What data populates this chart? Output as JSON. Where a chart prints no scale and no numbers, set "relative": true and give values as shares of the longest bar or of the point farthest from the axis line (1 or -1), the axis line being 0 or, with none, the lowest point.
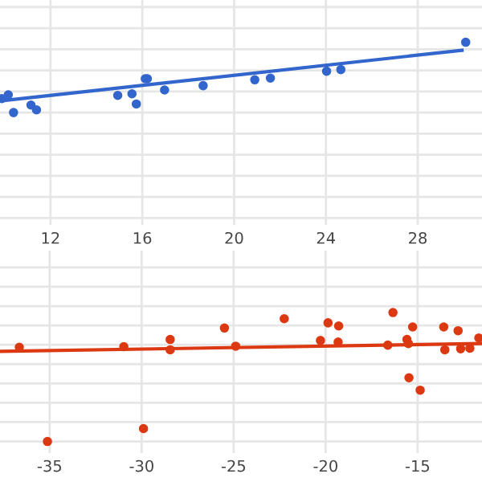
{
  "chart_data": [
    {
      "type": "scatter",
      "relative": true,
      "xlim": [
        9.8,
        30.8
      ],
      "xticks": [
        12,
        16,
        20,
        24,
        28
      ],
      "grid": true,
      "tick_labels": "x",
      "series": [
        {
          "marker": "circle",
          "color": "#3366cc",
          "x": [
            9.88,
            10.16,
            10.39,
            11.15,
            11.39,
            14.93,
            15.55,
            15.74,
            16.13,
            16.22,
            16.97,
            18.65,
            20.9,
            21.58,
            24.03,
            24.65,
            30.09
          ],
          "values": [
            0.198,
            0.252,
            0,
            0.107,
            0.038,
            0.244,
            0.267,
            0.122,
            0.481,
            0.481,
            0.321,
            0.382,
            0.466,
            0.489,
            0.588,
            0.611,
            1
          ]
        },
        {
          "type": "line",
          "color": "#3366cc",
          "x": [
            9.88,
            29.93
          ],
          "values": [
            0.168,
            0.885
          ]
        }
      ]
    },
    {
      "type": "scatter",
      "relative": true,
      "xlim": [
        -37.7,
        -11.5
      ],
      "xticks": [
        -35,
        -30,
        -25,
        -20,
        -15
      ],
      "grid": true,
      "tick_labels": "x",
      "series": [
        {
          "marker": "circle",
          "color": "#dc3912",
          "x": [
            -36.65,
            -35.12,
            -30.97,
            -29.9,
            -28.45,
            -28.45,
            -25.5,
            -24.89,
            -22.25,
            -20.28,
            -19.87,
            -19.29,
            -19.32,
            -16.62,
            -16.34,
            -15.58,
            -15.5,
            -15.47,
            -15.27,
            -14.86,
            -13.58,
            -13.52,
            -12.8,
            -12.66,
            -12.16,
            -11.67
          ],
          "values": [
            0.731,
            0,
            0.735,
            0.1,
            0.791,
            0.711,
            0.88,
            0.739,
            0.952,
            0.783,
            0.92,
            0.896,
            0.771,
            0.747,
            1,
            0.791,
            0.759,
            0.494,
            0.888,
            0.398,
            0.888,
            0.711,
            0.859,
            0.719,
            0.723,
            0.803
          ]
        },
        {
          "type": "line",
          "color": "#dc3912",
          "x": [
            -37.67,
            -11.56
          ],
          "values": [
            0.699,
            0.759
          ]
        }
      ]
    }
  ]
}
